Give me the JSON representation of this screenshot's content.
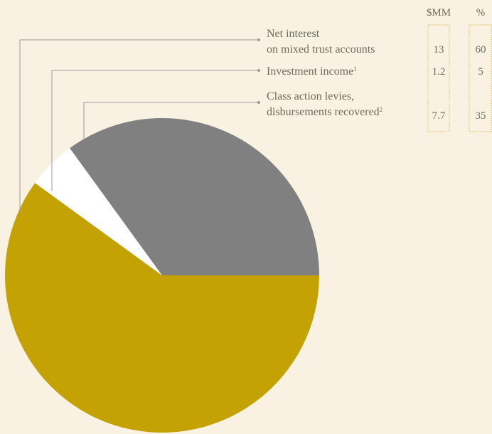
{
  "chart_data": {
    "type": "pie",
    "columns": [
      "$MM",
      "%"
    ],
    "slices": [
      {
        "label_lines": [
          "Net interest",
          "on mixed trust accounts"
        ],
        "footnote": "",
        "value": 13,
        "percent": 60,
        "value_label": "13",
        "percent_label": "60",
        "color": "#c4a203"
      },
      {
        "label_lines": [
          "Investment income"
        ],
        "footnote": "1",
        "value": 1.2,
        "percent": 5,
        "value_label": "1.2",
        "percent_label": "5",
        "color": "#ffffff"
      },
      {
        "label_lines": [
          "Class action levies,",
          "disbursements recovered"
        ],
        "footnote": "2",
        "value": 7.7,
        "percent": 35,
        "value_label": "7.7",
        "percent_label": "35",
        "color": "#808080"
      }
    ],
    "legend_placement": "top-right"
  },
  "colors": {
    "background": "#f9f2e3",
    "leader_line": "#9a9a9a",
    "column_box": "#d7bd4a",
    "text": "#6f6a5e"
  }
}
